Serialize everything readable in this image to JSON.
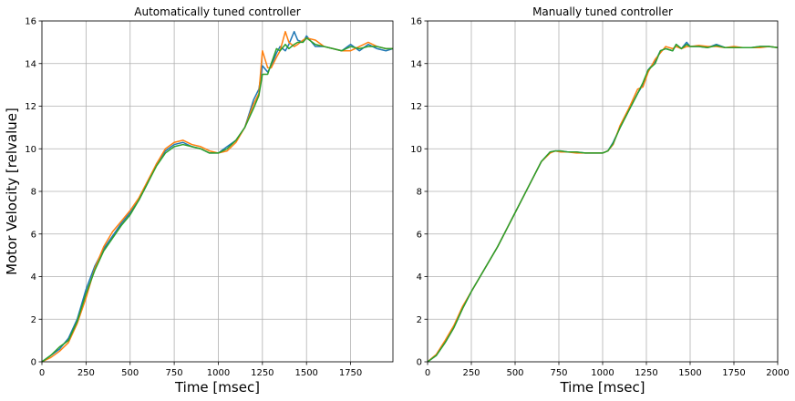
{
  "figure": {
    "ylabel": "Motor Velocity [relvalue]"
  },
  "chart_data": [
    {
      "type": "line",
      "title": "Automatically tuned controller",
      "xlabel": "Time [msec]",
      "ylabel": "Motor Velocity [relvalue]",
      "xlim": [
        0,
        1990
      ],
      "ylim": [
        0,
        16
      ],
      "xticks": [
        0,
        250,
        500,
        750,
        1000,
        1250,
        1500,
        1750
      ],
      "yticks": [
        0,
        2,
        4,
        6,
        8,
        10,
        12,
        14,
        16
      ],
      "grid": true,
      "colors": [
        "#1f77b4",
        "#ff7f0e",
        "#2ca02c"
      ],
      "series": [
        {
          "x": [
            0,
            50,
            100,
            150,
            200,
            250,
            300,
            350,
            400,
            450,
            500,
            550,
            600,
            650,
            700,
            750,
            800,
            850,
            900,
            950,
            1000,
            1050,
            1100,
            1150,
            1200,
            1230,
            1250,
            1280,
            1300,
            1330,
            1350,
            1380,
            1400,
            1430,
            1450,
            1480,
            1500,
            1550,
            1600,
            1650,
            1700,
            1750,
            1800,
            1850,
            1900,
            1950,
            1990
          ],
          "y": [
            0,
            0.3,
            0.6,
            1.1,
            2.0,
            3.4,
            4.5,
            5.3,
            5.9,
            6.5,
            7.0,
            7.6,
            8.4,
            9.3,
            9.9,
            10.2,
            10.3,
            10.1,
            10.0,
            9.8,
            9.8,
            10.1,
            10.4,
            11.0,
            12.3,
            12.8,
            13.9,
            13.6,
            13.9,
            14.5,
            14.8,
            14.6,
            14.9,
            15.5,
            15.1,
            15.0,
            15.3,
            14.8,
            14.8,
            14.7,
            14.6,
            14.9,
            14.6,
            14.9,
            14.7,
            14.6,
            14.7
          ]
        },
        {
          "x": [
            0,
            50,
            100,
            150,
            200,
            250,
            300,
            350,
            400,
            450,
            500,
            550,
            600,
            650,
            700,
            750,
            800,
            850,
            900,
            950,
            1000,
            1050,
            1100,
            1150,
            1200,
            1230,
            1250,
            1280,
            1300,
            1330,
            1350,
            1380,
            1400,
            1430,
            1450,
            1480,
            1500,
            1550,
            1600,
            1650,
            1700,
            1750,
            1800,
            1850,
            1900,
            1950,
            1990
          ],
          "y": [
            0,
            0.2,
            0.5,
            0.9,
            1.8,
            3.0,
            4.4,
            5.4,
            6.1,
            6.6,
            7.1,
            7.7,
            8.5,
            9.3,
            10.0,
            10.3,
            10.4,
            10.2,
            10.1,
            9.9,
            9.8,
            9.9,
            10.3,
            11.0,
            12.1,
            12.6,
            14.6,
            13.8,
            13.8,
            14.3,
            14.6,
            15.5,
            15.0,
            14.8,
            14.9,
            15.1,
            15.2,
            15.1,
            14.8,
            14.7,
            14.6,
            14.6,
            14.8,
            15.0,
            14.8,
            14.7,
            14.7
          ]
        },
        {
          "x": [
            0,
            50,
            100,
            150,
            200,
            250,
            300,
            350,
            400,
            450,
            500,
            550,
            600,
            650,
            700,
            750,
            800,
            850,
            900,
            950,
            1000,
            1050,
            1100,
            1150,
            1200,
            1230,
            1250,
            1280,
            1300,
            1330,
            1350,
            1380,
            1400,
            1430,
            1450,
            1480,
            1500,
            1550,
            1600,
            1650,
            1700,
            1750,
            1800,
            1850,
            1900,
            1950,
            1990
          ],
          "y": [
            0,
            0.3,
            0.7,
            1.0,
            1.9,
            3.2,
            4.3,
            5.2,
            5.8,
            6.4,
            6.9,
            7.6,
            8.4,
            9.2,
            9.8,
            10.1,
            10.2,
            10.1,
            10.0,
            9.8,
            9.8,
            10.0,
            10.4,
            11.0,
            11.9,
            12.5,
            13.5,
            13.5,
            14.0,
            14.7,
            14.6,
            14.9,
            14.7,
            14.9,
            15.0,
            15.0,
            15.2,
            14.9,
            14.8,
            14.7,
            14.6,
            14.8,
            14.7,
            14.8,
            14.8,
            14.7,
            14.7
          ]
        }
      ]
    },
    {
      "type": "line",
      "title": "Manually tuned controller",
      "xlabel": "Time [msec]",
      "xlim": [
        0,
        2000
      ],
      "ylim": [
        0,
        16
      ],
      "xticks": [
        0,
        250,
        500,
        750,
        1000,
        1250,
        1500,
        1750,
        2000
      ],
      "yticks": [
        0,
        2,
        4,
        6,
        8,
        10,
        12,
        14,
        16
      ],
      "grid": true,
      "colors": [
        "#1f77b4",
        "#ff7f0e",
        "#2ca02c"
      ],
      "series": [
        {
          "x": [
            0,
            50,
            100,
            150,
            200,
            250,
            300,
            350,
            400,
            450,
            500,
            550,
            600,
            650,
            700,
            730,
            760,
            800,
            850,
            900,
            950,
            1000,
            1030,
            1060,
            1100,
            1150,
            1200,
            1230,
            1260,
            1300,
            1330,
            1360,
            1400,
            1420,
            1450,
            1480,
            1500,
            1550,
            1600,
            1650,
            1700,
            1750,
            1800,
            1850,
            1900,
            1950,
            2000
          ],
          "y": [
            0,
            0.3,
            0.9,
            1.6,
            2.5,
            3.3,
            4.0,
            4.7,
            5.4,
            6.2,
            7.0,
            7.8,
            8.6,
            9.4,
            9.85,
            9.9,
            9.9,
            9.85,
            9.85,
            9.8,
            9.8,
            9.8,
            9.9,
            10.3,
            11.0,
            11.8,
            12.6,
            13.0,
            13.7,
            14.1,
            14.6,
            14.7,
            14.6,
            14.9,
            14.7,
            15.0,
            14.8,
            14.8,
            14.75,
            14.9,
            14.75,
            14.75,
            14.75,
            14.75,
            14.8,
            14.8,
            14.75
          ]
        },
        {
          "x": [
            0,
            50,
            100,
            150,
            200,
            250,
            300,
            350,
            400,
            450,
            500,
            550,
            600,
            650,
            700,
            730,
            760,
            800,
            850,
            900,
            950,
            1000,
            1030,
            1060,
            1100,
            1150,
            1200,
            1230,
            1260,
            1300,
            1330,
            1360,
            1400,
            1420,
            1450,
            1480,
            1500,
            1550,
            1600,
            1650,
            1700,
            1750,
            1800,
            1850,
            1900,
            1950,
            2000
          ],
          "y": [
            0,
            0.35,
            1.0,
            1.7,
            2.6,
            3.3,
            4.0,
            4.7,
            5.4,
            6.2,
            7.0,
            7.8,
            8.6,
            9.4,
            9.8,
            9.9,
            9.85,
            9.85,
            9.8,
            9.8,
            9.8,
            9.8,
            9.9,
            10.2,
            11.1,
            11.9,
            12.8,
            12.9,
            13.6,
            14.2,
            14.5,
            14.8,
            14.7,
            14.8,
            14.7,
            14.8,
            14.8,
            14.85,
            14.8,
            14.8,
            14.75,
            14.8,
            14.75,
            14.75,
            14.75,
            14.8,
            14.75
          ]
        },
        {
          "x": [
            0,
            50,
            100,
            150,
            200,
            250,
            300,
            350,
            400,
            450,
            500,
            550,
            600,
            650,
            700,
            730,
            760,
            800,
            850,
            900,
            950,
            1000,
            1030,
            1060,
            1100,
            1150,
            1200,
            1230,
            1260,
            1300,
            1330,
            1360,
            1400,
            1420,
            1450,
            1480,
            1500,
            1550,
            1600,
            1650,
            1700,
            1750,
            1800,
            1850,
            1900,
            1950,
            2000
          ],
          "y": [
            0,
            0.3,
            0.9,
            1.6,
            2.5,
            3.3,
            4.0,
            4.7,
            5.4,
            6.2,
            7.0,
            7.8,
            8.6,
            9.4,
            9.85,
            9.9,
            9.9,
            9.85,
            9.85,
            9.8,
            9.8,
            9.8,
            9.9,
            10.25,
            11.0,
            11.8,
            12.6,
            13.1,
            13.7,
            14.0,
            14.6,
            14.7,
            14.6,
            14.9,
            14.7,
            14.9,
            14.8,
            14.8,
            14.75,
            14.85,
            14.75,
            14.75,
            14.75,
            14.75,
            14.8,
            14.8,
            14.75
          ]
        }
      ]
    }
  ]
}
